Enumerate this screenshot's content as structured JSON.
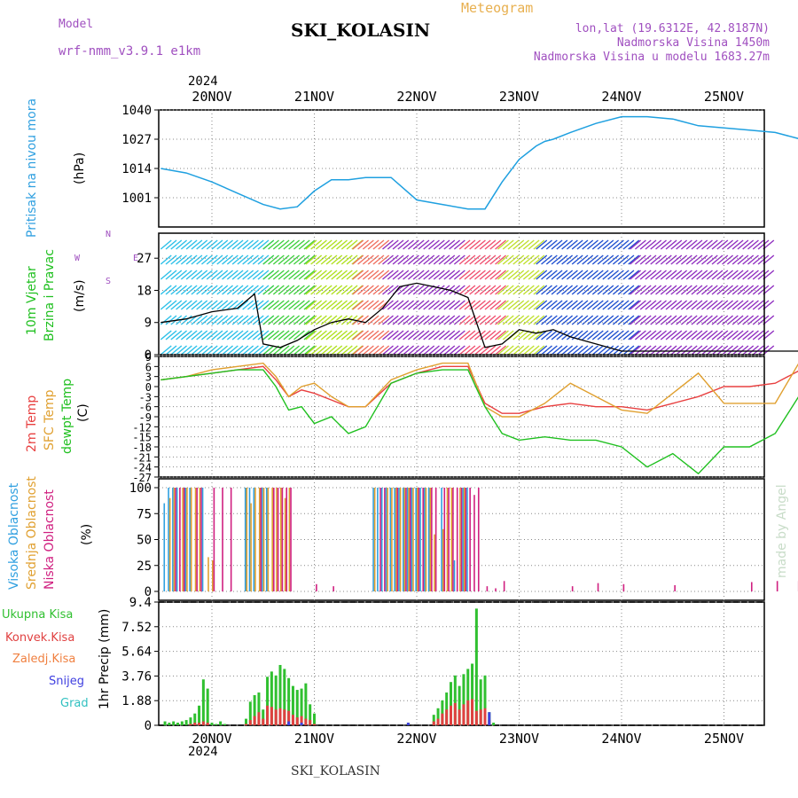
{
  "header": {
    "model_label": "Model",
    "model_value": "wrf-nmm_v3.9.1 e1km",
    "station": "SKI_KOLASIN",
    "meteogram": "Meteogram",
    "lonlat": "lon,lat (19.6312E, 42.8187N)",
    "altitude": "Nadmorska Visina 1450m",
    "model_altitude": "Nadmorska Visina u modelu 1683.27m",
    "year": "2024",
    "footer_station": "SKI_KOLASIN",
    "credit": "made by Angel"
  },
  "colors": {
    "pressure": "#1fa0e0",
    "temp2m": "#e84040",
    "sfc_temp": "#e0a030",
    "dewpt": "#20c020",
    "high_cloud": "#30a0e0",
    "mid_cloud": "#e0a030",
    "low_cloud": "#d02080",
    "total_precip": "#30c030",
    "conv_precip": "#e04040",
    "freezing": "#f08040",
    "snow": "#4040e0",
    "hail": "#30c0c0"
  },
  "days": [
    "20NOV",
    "21NOV",
    "22NOV",
    "23NOV",
    "24NOV",
    "25NOV"
  ],
  "panel_labels": {
    "pressure": [
      "Pritisak na nivou mora",
      "(hPa)"
    ],
    "wind": [
      "10m Vjetar",
      "Brzina i Pravac",
      "(m/s)"
    ],
    "wind_compass": [
      "N",
      "S",
      "W",
      "E"
    ],
    "temp": [
      "2m Temp",
      "SFC Temp",
      "dewpt Temp",
      "(C)"
    ],
    "cloud": [
      "Visoka Oblacnost",
      "Srednja Oblacnost",
      "Niska Oblacnost",
      "(%)"
    ],
    "precip_units": "1hr Precip (mm)",
    "precip_legend": [
      "Ukupna Kisa",
      "Konvek.Kisa",
      "Zaledj.Kisa",
      "Snijeg",
      "Grad"
    ]
  },
  "chart_data": [
    {
      "type": "line",
      "name": "pressure",
      "ylim": [
        988,
        1040
      ],
      "yticks": [
        "1040",
        "1027",
        "1014",
        "1001"
      ],
      "x_hours": [
        0,
        6,
        12,
        18,
        24,
        28,
        32,
        36,
        40,
        44,
        48,
        54,
        60,
        66,
        72,
        76,
        80,
        84,
        88,
        90,
        92,
        96,
        102,
        108,
        114,
        120,
        126,
        132,
        138,
        144,
        150
      ],
      "series": [
        {
          "values": [
            1014,
            1012,
            1008,
            1003,
            998,
            996,
            997,
            1004,
            1009,
            1009,
            1010,
            1010,
            1000,
            998,
            996,
            996,
            1008,
            1018,
            1024,
            1026,
            1027,
            1030,
            1034,
            1037,
            1037,
            1036,
            1033,
            1032,
            1031,
            1030,
            1027
          ]
        }
      ]
    },
    {
      "type": "line",
      "name": "wind",
      "ylim": [
        0,
        34
      ],
      "yticks": [
        "27",
        "18",
        "9",
        "0"
      ],
      "x_hours": [
        0,
        6,
        12,
        18,
        22,
        24,
        28,
        32,
        36,
        40,
        44,
        48,
        52,
        56,
        60,
        64,
        68,
        72,
        76,
        80,
        84,
        88,
        92,
        96,
        102,
        108,
        114,
        120,
        126,
        132,
        138,
        144,
        150
      ],
      "series": [
        {
          "values": [
            9,
            10,
            12,
            13,
            17,
            3,
            2,
            4,
            7,
            9,
            10,
            9,
            13,
            19,
            20,
            19,
            18,
            16,
            2,
            3,
            7,
            6,
            7,
            5,
            3,
            1,
            1,
            1,
            1,
            1,
            1,
            1,
            1
          ]
        }
      ]
    },
    {
      "type": "line",
      "name": "temperature",
      "ylim": [
        -27,
        9
      ],
      "yticks": [
        "9",
        "6",
        "3",
        "0",
        "-3",
        "-6",
        "-9",
        "-12",
        "-15",
        "-18",
        "-21",
        "-24",
        "-27"
      ],
      "x_hours": [
        0,
        6,
        12,
        18,
        24,
        27,
        30,
        33,
        36,
        40,
        44,
        48,
        54,
        60,
        66,
        72,
        76,
        80,
        84,
        90,
        96,
        102,
        108,
        114,
        120,
        126,
        132,
        138,
        144,
        150
      ],
      "series": [
        {
          "name": "2m Temp",
          "values": [
            2,
            3,
            4,
            5,
            6,
            2,
            -3,
            -1,
            -2,
            -4,
            -6,
            -6,
            1,
            4,
            6,
            6,
            -5,
            -8,
            -8,
            -6,
            -5,
            -6,
            -6,
            -7,
            -5,
            -3,
            0,
            0,
            1,
            5
          ]
        },
        {
          "name": "SFC Temp",
          "values": [
            2,
            3,
            5,
            6,
            7,
            3,
            -3,
            0,
            1,
            -3,
            -6,
            -6,
            2,
            5,
            7,
            7,
            -6,
            -9,
            -9,
            -5,
            1,
            -3,
            -7,
            -8,
            -2,
            4,
            -5,
            -5,
            -5,
            8
          ]
        },
        {
          "name": "dewpt Temp",
          "values": [
            2,
            3,
            4,
            5,
            5,
            0,
            -7,
            -6,
            -11,
            -9,
            -14,
            -12,
            1,
            4,
            5,
            5,
            -6,
            -14,
            -16,
            -15,
            -16,
            -16,
            -18,
            -24,
            -20,
            -26,
            -18,
            -18,
            -14,
            -2
          ]
        }
      ]
    },
    {
      "type": "bar",
      "name": "cloud_cover",
      "ylim": [
        0,
        100
      ],
      "yticks": [
        "100",
        "75",
        "50",
        "25",
        "0"
      ],
      "x_hours": [
        1,
        2,
        3,
        4,
        5,
        6,
        7,
        8,
        9,
        10,
        11,
        12,
        14,
        16,
        20,
        21,
        22,
        23,
        24,
        25,
        26,
        27,
        28,
        29,
        30,
        36,
        40,
        50,
        51,
        52,
        53,
        54,
        55,
        56,
        57,
        58,
        59,
        60,
        61,
        62,
        63,
        64,
        66,
        67,
        68,
        69,
        70,
        71,
        72,
        73,
        74,
        76,
        78,
        80,
        96,
        102,
        108,
        120,
        138,
        144,
        149
      ],
      "series": [
        {
          "name": "Visoka Oblacnost",
          "values": [
            85,
            100,
            100,
            100,
            0,
            100,
            100,
            0,
            0,
            100,
            0,
            0,
            0,
            0,
            100,
            100,
            100,
            0,
            100,
            100,
            0,
            0,
            0,
            0,
            0,
            0,
            0,
            100,
            100,
            100,
            100,
            100,
            100,
            100,
            100,
            100,
            100,
            100,
            100,
            100,
            100,
            0,
            100,
            0,
            0,
            30,
            0,
            100,
            100,
            0,
            0,
            0,
            0,
            0,
            0,
            0,
            0,
            0,
            0,
            0,
            0
          ]
        },
        {
          "name": "Srednja Oblacnost",
          "values": [
            0,
            90,
            100,
            0,
            100,
            100,
            100,
            100,
            100,
            0,
            33,
            30,
            0,
            0,
            100,
            85,
            100,
            100,
            100,
            100,
            100,
            100,
            100,
            90,
            100,
            0,
            0,
            100,
            0,
            0,
            100,
            100,
            100,
            100,
            100,
            100,
            100,
            100,
            0,
            100,
            100,
            55,
            60,
            100,
            100,
            0,
            100,
            100,
            0,
            0,
            0,
            0,
            0,
            0,
            0,
            0,
            0,
            0,
            0,
            0,
            0
          ]
        },
        {
          "name": "Niska Oblacnost",
          "values": [
            0,
            0,
            100,
            100,
            100,
            0,
            0,
            100,
            100,
            0,
            0,
            100,
            100,
            100,
            0,
            0,
            0,
            100,
            0,
            0,
            100,
            100,
            100,
            100,
            100,
            7,
            5,
            0,
            100,
            100,
            0,
            0,
            100,
            0,
            100,
            100,
            0,
            100,
            100,
            0,
            100,
            100,
            100,
            100,
            100,
            100,
            100,
            100,
            100,
            93,
            100,
            5,
            3,
            10,
            5,
            8,
            7,
            6,
            9,
            10,
            10
          ]
        }
      ]
    },
    {
      "type": "bar",
      "name": "precipitation",
      "ylim": [
        0,
        9.4
      ],
      "yticks": [
        "9.4",
        "7.52",
        "5.64",
        "3.76",
        "1.88",
        "0"
      ],
      "x_hours": [
        1,
        2,
        3,
        4,
        5,
        6,
        7,
        8,
        9,
        10,
        11,
        12,
        13,
        14,
        15,
        20,
        21,
        22,
        23,
        24,
        25,
        26,
        27,
        28,
        29,
        30,
        31,
        32,
        33,
        34,
        35,
        36,
        58,
        64,
        65,
        66,
        67,
        68,
        69,
        70,
        71,
        72,
        73,
        74,
        75,
        76,
        77,
        78
      ],
      "series": [
        {
          "name": "Ukupna Kisa",
          "values": [
            0.3,
            0.2,
            0.3,
            0.2,
            0.3,
            0.4,
            0.6,
            0.9,
            1.5,
            3.5,
            2.8,
            0.2,
            0.1,
            0.3,
            0.1,
            0.5,
            1.8,
            2.3,
            2.5,
            1.2,
            3.7,
            4.1,
            3.8,
            4.6,
            4.3,
            3.6,
            3.0,
            2.7,
            2.8,
            3.2,
            1.6,
            0.9,
            0.2,
            0.8,
            1.3,
            1.9,
            2.5,
            3.3,
            3.8,
            3.0,
            3.9,
            4.3,
            4.7,
            8.9,
            3.5,
            3.8,
            1.0,
            0.2
          ]
        },
        {
          "name": "Konvek.Kisa",
          "values": [
            0,
            0,
            0,
            0,
            0,
            0,
            0.1,
            0.2,
            0.2,
            0.3,
            0.2,
            0,
            0,
            0,
            0,
            0.1,
            0.4,
            0.7,
            1.0,
            0.5,
            1.5,
            1.4,
            1.2,
            1.3,
            1.2,
            1.1,
            0.8,
            0.6,
            0.7,
            0.5,
            0.4,
            0.1,
            0,
            0.3,
            0.5,
            0.9,
            1.2,
            1.5,
            1.7,
            1.2,
            1.6,
            1.9,
            2.0,
            1.1,
            1.2,
            1.3,
            0.4,
            0
          ]
        },
        {
          "name": "Snijeg",
          "values": [
            0,
            0,
            0,
            0,
            0,
            0,
            0,
            0,
            0,
            0,
            0,
            0,
            0,
            0,
            0,
            0,
            0,
            0,
            0,
            0,
            0,
            0,
            0,
            0,
            0,
            0.3,
            0,
            0,
            0.2,
            0,
            0,
            0,
            0.2,
            0,
            0,
            0,
            0,
            0,
            0,
            0,
            0,
            0,
            0,
            0,
            0,
            0,
            1.0,
            0
          ]
        }
      ]
    }
  ]
}
